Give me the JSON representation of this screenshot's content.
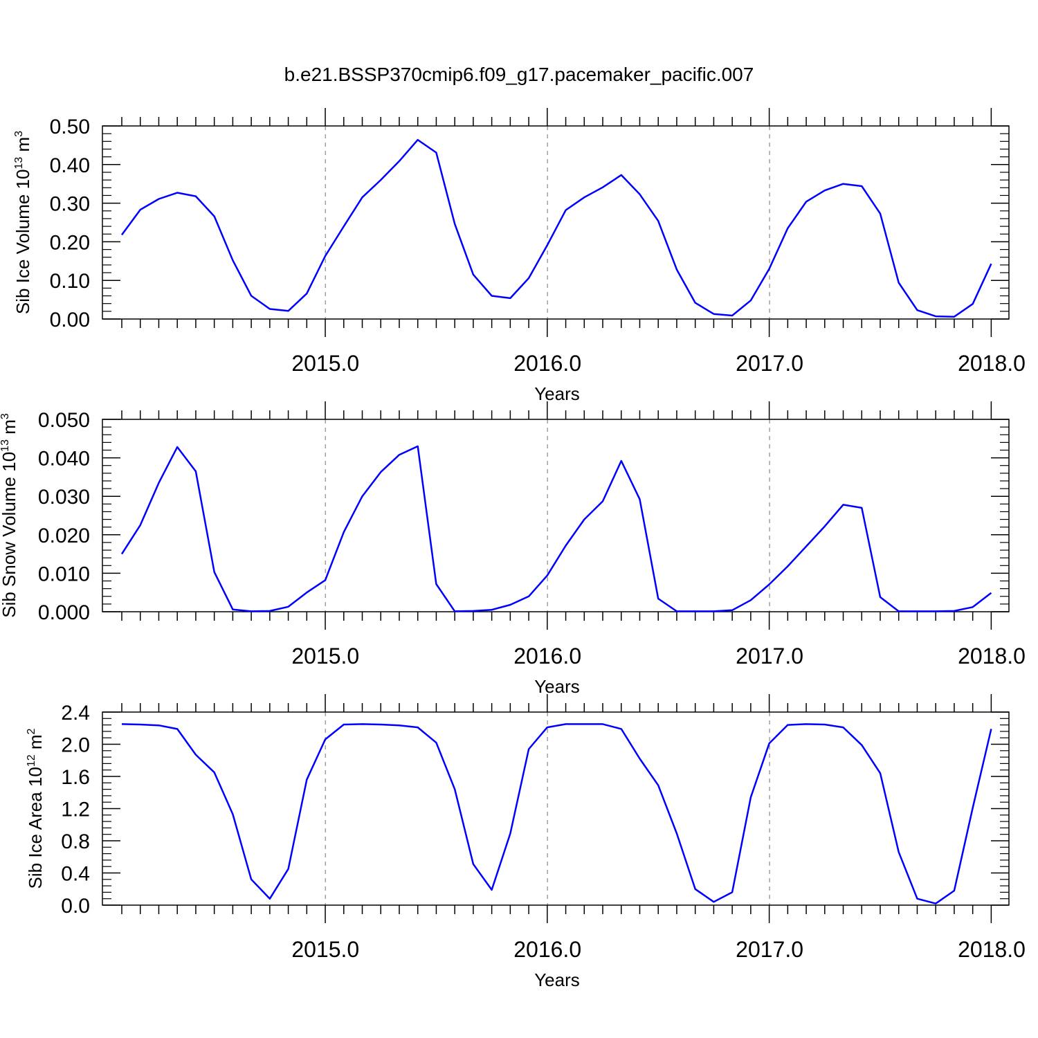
{
  "title": "b.e21.BSSP370cmip6.f09_g17.pacemaker_pacific.007",
  "colors": {
    "line": "#0000ff",
    "grid": "#a0a0a0",
    "axis": "#000000"
  },
  "chart_data": [
    {
      "type": "line",
      "ylabel": "Sib Ice Volume 10",
      "ylabel_sup": "13",
      "ylabel_unit": "m",
      "ylabel_unit_sup": "3",
      "xlabel": "Years",
      "xlim": [
        2014.083,
        2018.0
      ],
      "ylim": [
        0.0,
        0.5
      ],
      "x_ticks": [
        "2015.0",
        "2016.0",
        "2017.0",
        "2018.0"
      ],
      "y_ticks": [
        "0.00",
        "0.10",
        "0.20",
        "0.30",
        "0.40",
        "0.50"
      ],
      "grid": "dashed vertical at 2015.0, 2016.0, 2017.0",
      "x_start": 2014.083,
      "x_step": 0.0833,
      "values": [
        0.218,
        0.283,
        0.311,
        0.327,
        0.318,
        0.266,
        0.152,
        0.06,
        0.026,
        0.021,
        0.066,
        0.163,
        0.24,
        0.315,
        0.36,
        0.409,
        0.464,
        0.431,
        0.246,
        0.115,
        0.06,
        0.054,
        0.106,
        0.191,
        0.282,
        0.315,
        0.341,
        0.373,
        0.323,
        0.254,
        0.128,
        0.042,
        0.013,
        0.009,
        0.048,
        0.13,
        0.235,
        0.304,
        0.333,
        0.35,
        0.344,
        0.273,
        0.094,
        0.023,
        0.007,
        0.006,
        0.039,
        0.143
      ]
    },
    {
      "type": "line",
      "ylabel": "Sib Snow Volume 10",
      "ylabel_sup": "13",
      "ylabel_unit": "m",
      "ylabel_unit_sup": "3",
      "xlabel": "Years",
      "xlim": [
        2014.083,
        2018.0
      ],
      "ylim": [
        0.0,
        0.05
      ],
      "x_ticks": [
        "2015.0",
        "2016.0",
        "2017.0",
        "2018.0"
      ],
      "y_ticks": [
        "0.000",
        "0.010",
        "0.020",
        "0.030",
        "0.040",
        "0.050"
      ],
      "grid": "dashed vertical at 2015.0, 2016.0, 2017.0",
      "x_start": 2014.083,
      "x_step": 0.0833,
      "values": [
        0.015,
        0.0225,
        0.0335,
        0.0428,
        0.0365,
        0.0103,
        0.0006,
        0.0001,
        0.0002,
        0.0013,
        0.005,
        0.0082,
        0.0207,
        0.03,
        0.0363,
        0.0408,
        0.043,
        0.0072,
        0.0001,
        0.0002,
        0.0005,
        0.0018,
        0.004,
        0.0094,
        0.0172,
        0.024,
        0.0287,
        0.0392,
        0.0292,
        0.0034,
        0.0001,
        0.0001,
        0.0001,
        0.0004,
        0.003,
        0.0071,
        0.0118,
        0.017,
        0.0222,
        0.0278,
        0.027,
        0.0038,
        0.0001,
        0.0001,
        0.0001,
        0.0002,
        0.0012,
        0.0049
      ]
    },
    {
      "type": "line",
      "ylabel": "Sib Ice Area 10",
      "ylabel_sup": "12",
      "ylabel_unit": "m",
      "ylabel_unit_sup": "2",
      "xlabel": "Years",
      "xlim": [
        2014.083,
        2018.0
      ],
      "ylim": [
        0.0,
        2.4
      ],
      "x_ticks": [
        "2015.0",
        "2016.0",
        "2017.0",
        "2018.0"
      ],
      "y_ticks": [
        "0.0",
        "0.4",
        "0.8",
        "1.2",
        "1.6",
        "2.0",
        "2.4"
      ],
      "grid": "dashed vertical at 2015.0, 2016.0, 2017.0",
      "x_start": 2014.083,
      "x_step": 0.0833,
      "values": [
        2.25,
        2.245,
        2.235,
        2.19,
        1.87,
        1.65,
        1.13,
        0.32,
        0.08,
        0.45,
        1.56,
        2.06,
        2.245,
        2.25,
        2.245,
        2.235,
        2.21,
        2.02,
        1.44,
        0.51,
        0.19,
        0.89,
        1.94,
        2.21,
        2.25,
        2.25,
        2.25,
        2.19,
        1.82,
        1.49,
        0.89,
        0.2,
        0.04,
        0.16,
        1.34,
        2.01,
        2.24,
        2.25,
        2.245,
        2.21,
        1.99,
        1.64,
        0.66,
        0.08,
        0.02,
        0.18,
        1.21,
        2.19
      ]
    }
  ]
}
